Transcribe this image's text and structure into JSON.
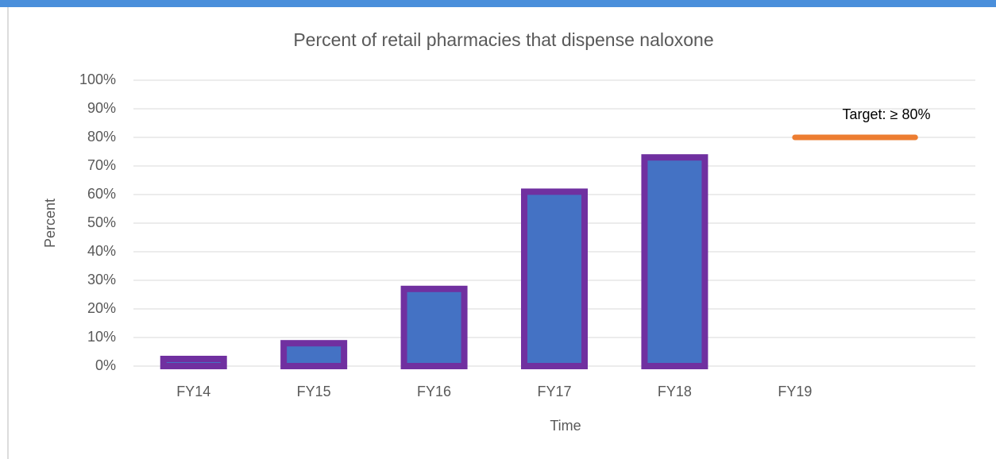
{
  "chart_data": {
    "type": "bar",
    "title": "Percent of retail pharmacies that dispense naloxone",
    "xlabel": "Time",
    "ylabel": "Percent",
    "categories": [
      "FY14",
      "FY15",
      "FY16",
      "FY17",
      "FY18",
      "FY19",
      null
    ],
    "values": [
      2.5,
      8,
      27,
      61,
      73,
      null,
      null
    ],
    "color": "#4472c4",
    "edge_color": "#7030a0",
    "target": {
      "values": [
        null,
        null,
        null,
        null,
        null,
        80,
        80
      ],
      "color": "#ed7d31",
      "label": "Target: ≥ 80%"
    },
    "ylim": [
      0,
      100
    ],
    "yticks": [
      {
        "value": 0,
        "label": "0%"
      },
      {
        "value": 10,
        "label": "10%"
      },
      {
        "value": 20,
        "label": "20%"
      },
      {
        "value": 30,
        "label": "30%"
      },
      {
        "value": 40,
        "label": "40%"
      },
      {
        "value": 50,
        "label": "50%"
      },
      {
        "value": 60,
        "label": "60%"
      },
      {
        "value": 70,
        "label": "70%"
      },
      {
        "value": 80,
        "label": "80%"
      },
      {
        "value": 90,
        "label": "90%"
      },
      {
        "value": 100,
        "label": "100%"
      }
    ],
    "grid": true
  }
}
